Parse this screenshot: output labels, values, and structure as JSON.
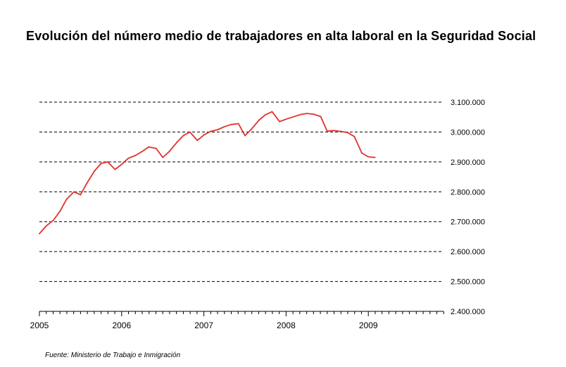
{
  "title": "Evolución del número medio de trabajadores en alta laboral en la Seguridad Social",
  "source": "Fuente: Ministerio de Trabajo e Inmigración",
  "colors": {
    "line": "#e0322d",
    "grid": "#000000",
    "axis": "#000000"
  },
  "chart_data": {
    "type": "line",
    "title": "Evolución del número medio de trabajadores en alta laboral en la Seguridad Social",
    "xlabel": "",
    "ylabel": "",
    "ylim": [
      2400000,
      3100000
    ],
    "xlim": [
      2005.0,
      2010.0
    ],
    "grid": true,
    "y_axis_position": "right",
    "x_ticks": [
      "2005",
      "2006",
      "2007",
      "2008",
      "2009"
    ],
    "y_ticks": [
      "3.100.000",
      "3.000.000",
      "2.900.000",
      "2.800.000",
      "2.700.000",
      "2.600.000",
      "2.500.000",
      "2.400.000"
    ],
    "series": [
      {
        "name": "",
        "color": "#e0322d",
        "x": [
          2005.0,
          2005.08,
          2005.17,
          2005.25,
          2005.33,
          2005.42,
          2005.5,
          2005.58,
          2005.67,
          2005.75,
          2005.83,
          2005.92,
          2006.0,
          2006.08,
          2006.17,
          2006.25,
          2006.33,
          2006.42,
          2006.5,
          2006.58,
          2006.67,
          2006.75,
          2006.83,
          2006.92,
          2007.0,
          2007.08,
          2007.17,
          2007.25,
          2007.33,
          2007.42,
          2007.5,
          2007.58,
          2007.67,
          2007.75,
          2007.83,
          2007.92,
          2008.0,
          2008.08,
          2008.17,
          2008.25,
          2008.33,
          2008.42,
          2008.5,
          2008.58,
          2008.67,
          2008.75,
          2008.83,
          2008.92,
          2009.0,
          2009.08
        ],
        "values": [
          2660000,
          2685000,
          2705000,
          2735000,
          2775000,
          2800000,
          2790000,
          2830000,
          2870000,
          2895000,
          2900000,
          2875000,
          2892000,
          2912000,
          2922000,
          2935000,
          2950000,
          2945000,
          2915000,
          2935000,
          2965000,
          2988000,
          3000000,
          2972000,
          2990000,
          3002000,
          3008000,
          3018000,
          3025000,
          3028000,
          2988000,
          3010000,
          3040000,
          3058000,
          3068000,
          3035000,
          3043000,
          3050000,
          3058000,
          3062000,
          3060000,
          3052000,
          3003000,
          3005000,
          3002000,
          2998000,
          2985000,
          2930000,
          2917000,
          2915000
        ]
      }
    ]
  }
}
